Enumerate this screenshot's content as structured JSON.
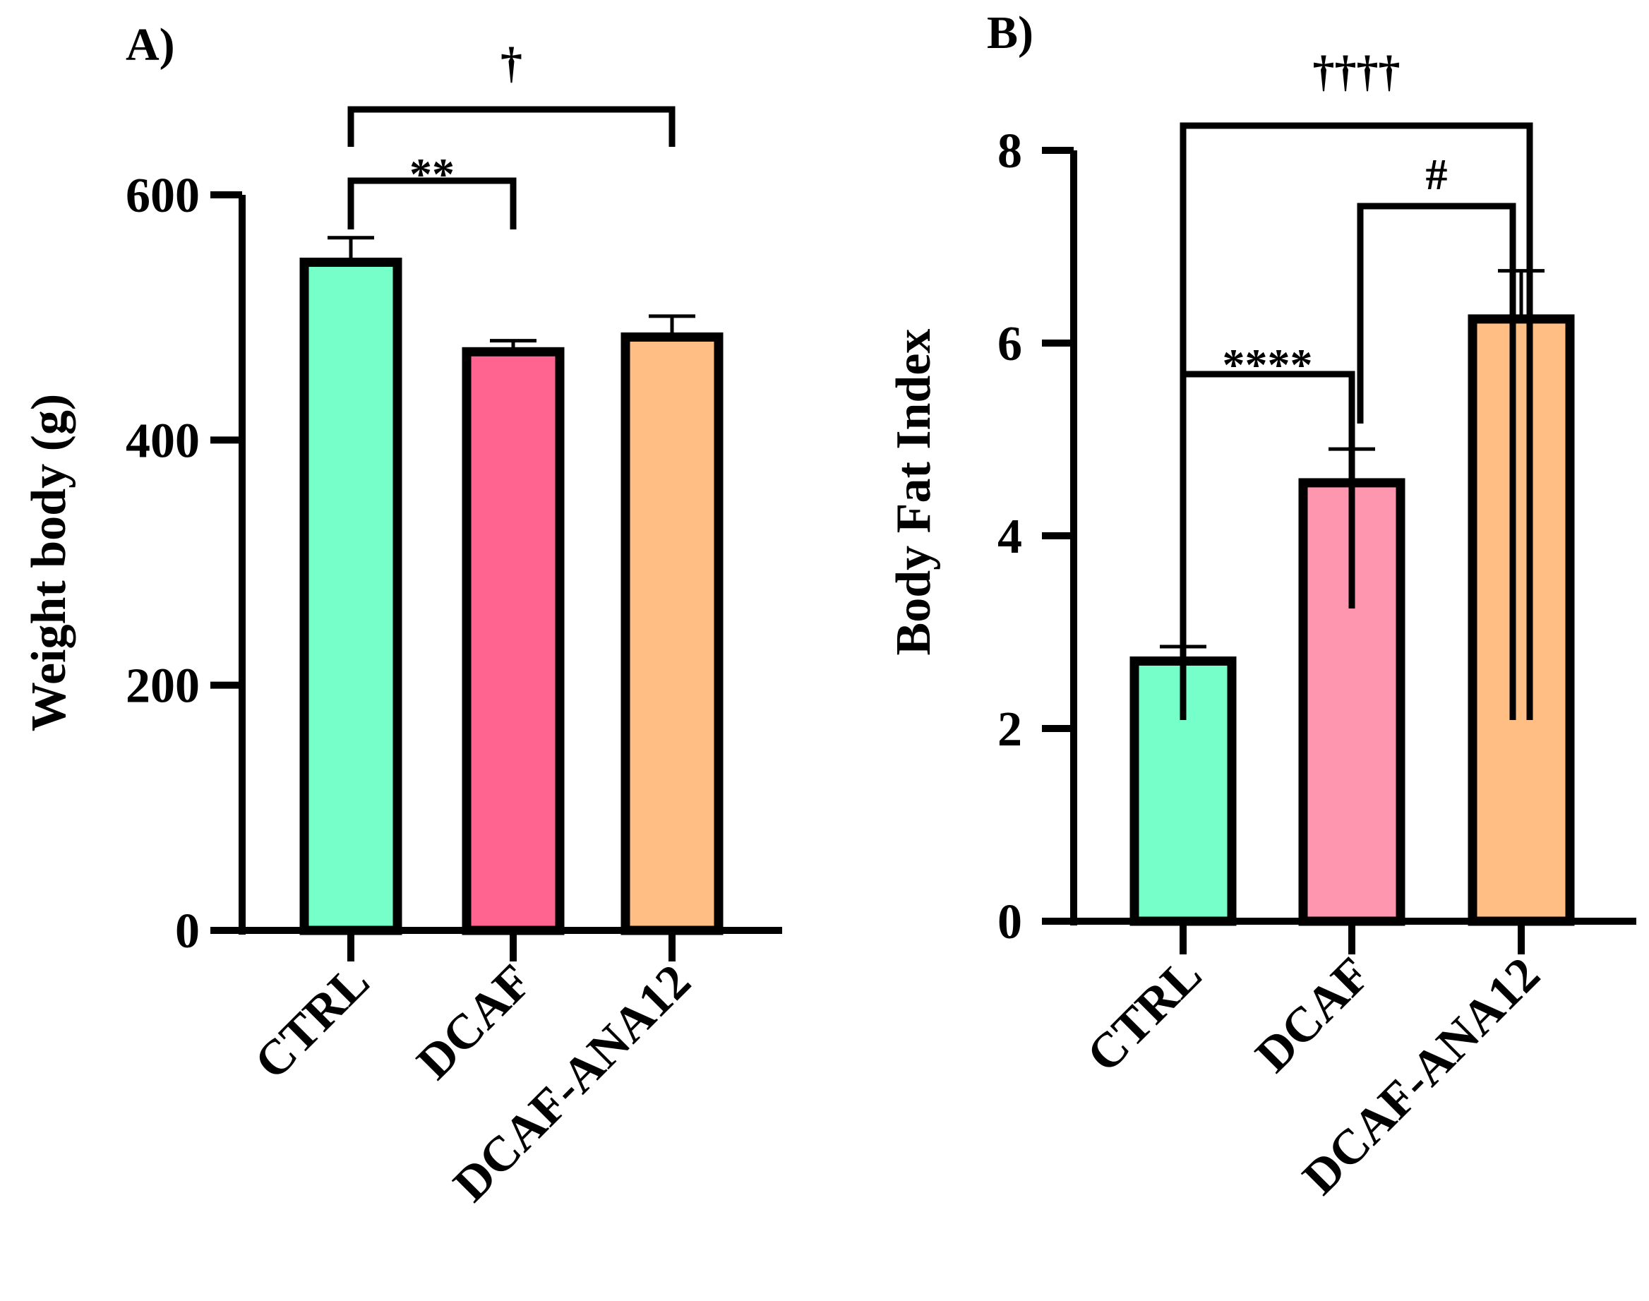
{
  "chart_data": [
    {
      "type": "bar",
      "panel_label": "A)",
      "title": "",
      "xlabel": "",
      "ylabel": "Weight body (g)",
      "categories": [
        "CTRL",
        "DCAF",
        "DCAF-ANA12"
      ],
      "values": [
        545,
        472,
        484
      ],
      "errors": [
        20,
        9,
        17
      ],
      "colors": [
        "#76FFC8",
        "#FF6491",
        "#FFBE84"
      ],
      "ylim": [
        0,
        600
      ],
      "yticks": [
        0,
        200,
        400,
        600
      ],
      "grid": false,
      "significance": [
        {
          "from": 0,
          "to": 1,
          "label": "**"
        },
        {
          "from": 0,
          "to": 2,
          "label": "†"
        }
      ]
    },
    {
      "type": "bar",
      "panel_label": "B)",
      "title": "",
      "xlabel": "",
      "ylabel": "Body Fat Index",
      "categories": [
        "CTRL",
        "DCAF",
        "DCAF-ANA12"
      ],
      "values": [
        2.7,
        4.55,
        6.25
      ],
      "errors": [
        0.15,
        0.35,
        0.5
      ],
      "colors": [
        "#76FFC8",
        "#FF96AF",
        "#FFBE84"
      ],
      "ylim": [
        0,
        8
      ],
      "yticks": [
        0,
        2,
        4,
        6,
        8
      ],
      "grid": false,
      "significance": [
        {
          "from": 0,
          "to": 1,
          "label": "****"
        },
        {
          "from": 1,
          "to": 2,
          "label": "#"
        },
        {
          "from": 0,
          "to": 2,
          "label": "††††"
        }
      ]
    }
  ]
}
